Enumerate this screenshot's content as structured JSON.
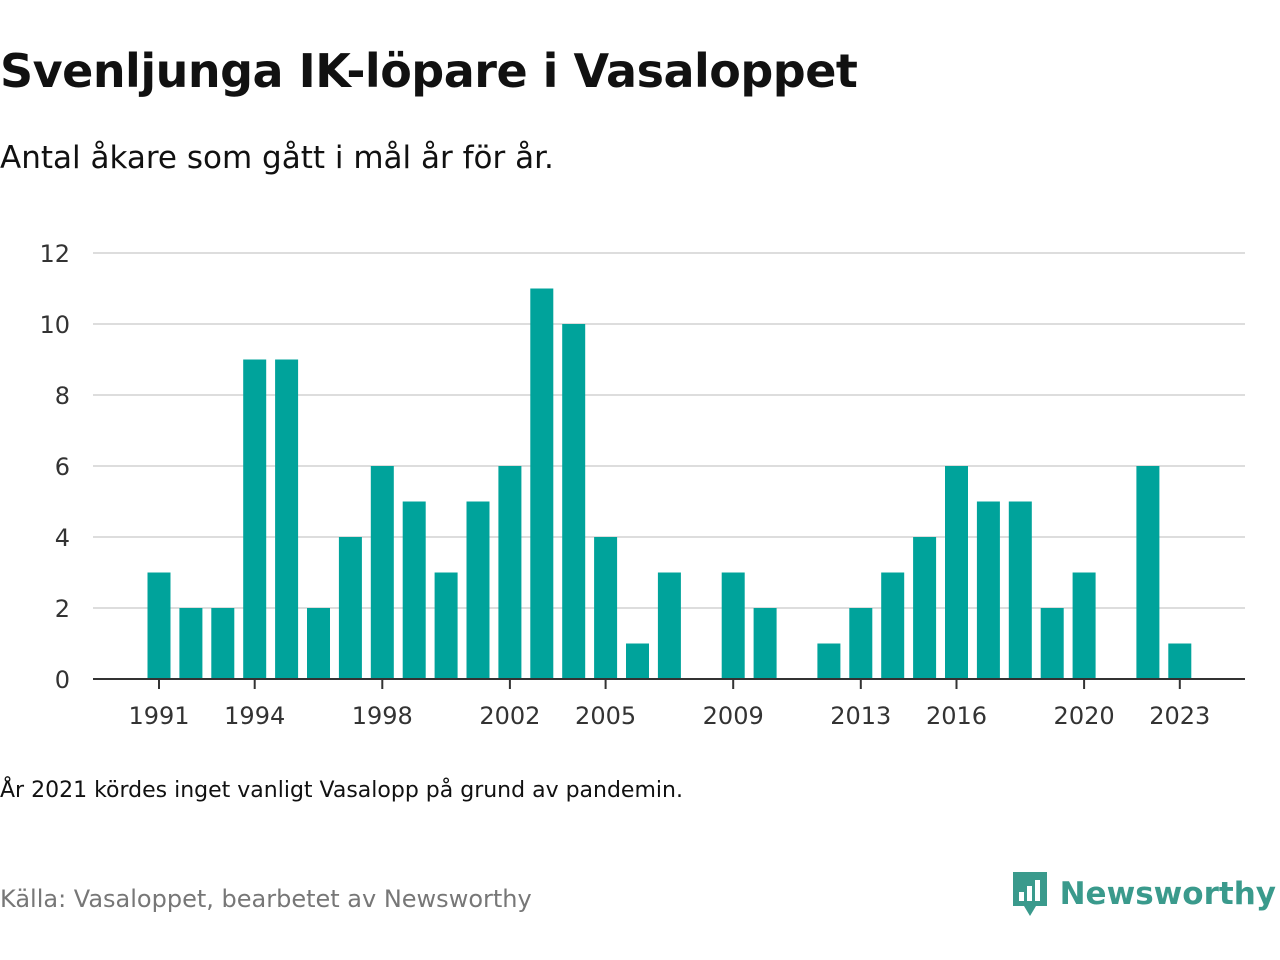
{
  "title": "Svenljunga IK-löpare i Vasaloppet",
  "subtitle": "Antal åkare som gått i mål år för år.",
  "note": "År 2021 kördes inget vanligt Vasalopp på grund av pandemin.",
  "source": "Källa: Vasaloppet, bearbetet av Newsworthy",
  "brand": {
    "name": "Newsworthy",
    "color": "#3a9a8c",
    "icon": "newsworthy-logo-icon"
  },
  "chart_data": {
    "type": "bar",
    "categories": [
      1991,
      1992,
      1993,
      1994,
      1995,
      1996,
      1997,
      1998,
      1999,
      2000,
      2001,
      2002,
      2003,
      2004,
      2005,
      2006,
      2007,
      2008,
      2009,
      2010,
      2011,
      2012,
      2013,
      2014,
      2015,
      2016,
      2017,
      2018,
      2019,
      2020,
      2021,
      2022,
      2023
    ],
    "values": [
      3,
      2,
      2,
      9,
      9,
      2,
      4,
      6,
      5,
      3,
      5,
      6,
      11,
      10,
      4,
      1,
      3,
      0,
      3,
      2,
      0,
      1,
      2,
      3,
      4,
      6,
      5,
      5,
      2,
      3,
      0,
      6,
      1
    ],
    "x_tick_labels": [
      "1991",
      "1994",
      "1998",
      "2002",
      "2005",
      "2009",
      "2013",
      "2016",
      "2020",
      "2023"
    ],
    "y_ticks": [
      "0",
      "2",
      "4",
      "6",
      "8",
      "10",
      "12"
    ],
    "ylim": [
      0,
      12
    ],
    "grid": true,
    "bar_color": "#00a39b"
  }
}
